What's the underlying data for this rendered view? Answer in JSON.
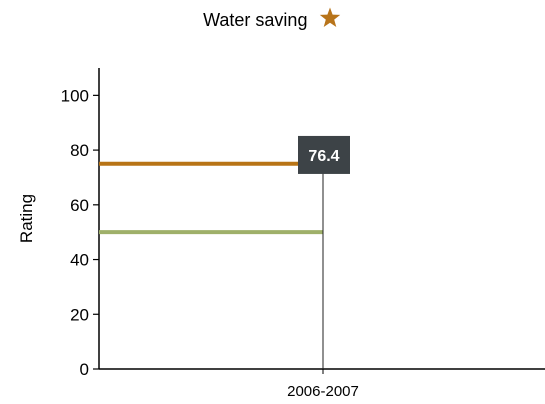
{
  "chart_data": {
    "type": "line",
    "title": "Water saving",
    "title_icon": "star-icon",
    "ylabel": "Rating",
    "xlabel": "",
    "categories": [
      "2006-2007"
    ],
    "ylim": [
      0,
      110
    ],
    "yticks": [
      0,
      20,
      40,
      60,
      80,
      100
    ],
    "grid": false,
    "series": [
      {
        "values": [
          75
        ],
        "color": "#b87416"
      },
      {
        "values": [
          50
        ],
        "color": "#9fb06a"
      }
    ],
    "marker": {
      "category": "2006-2007",
      "value": 76.4,
      "label": "76.4",
      "color": "#3d4347"
    }
  },
  "colors": {
    "star": "#b8741a",
    "axis": "#000000"
  }
}
